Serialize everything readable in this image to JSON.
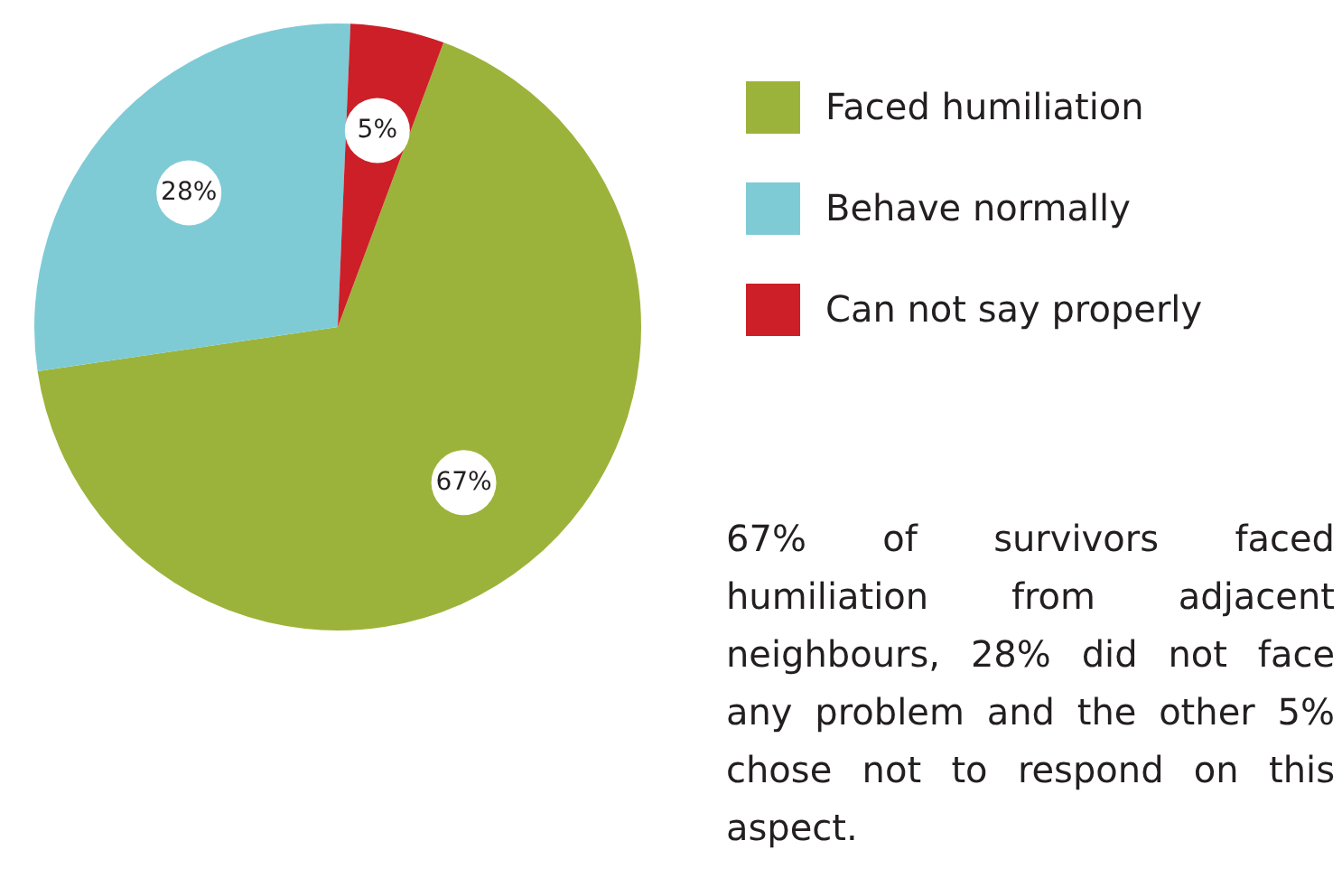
{
  "chart_data": {
    "type": "pie",
    "categories": [
      "Faced humiliation",
      "Behave normally",
      "Can not say properly"
    ],
    "values": [
      67,
      28,
      5
    ],
    "colors": [
      "#9bb33a",
      "#7ecbd6",
      "#cc1f27"
    ],
    "value_labels": [
      "67%",
      "28%",
      "5%"
    ],
    "legend": "right",
    "annotations": [
      "67% of survivors faced humiliation from adjacent neighbours, 28% did not face any problem and the other 5% chose not to respond on this aspect."
    ]
  }
}
